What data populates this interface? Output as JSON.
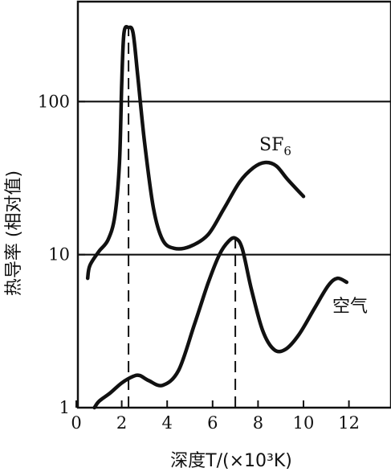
{
  "chart_data": {
    "type": "line",
    "xlabel": "深度T/(×10³K)",
    "ylabel": "热导率 (相对值)",
    "x_ticks": [
      "0",
      "2",
      "4",
      "6",
      "8",
      "10",
      "12"
    ],
    "y_ticks": [
      "1",
      "10",
      "100"
    ],
    "y_tick_values": [
      1,
      10,
      100
    ],
    "xlim": [
      0,
      13
    ],
    "ylim": [
      1,
      450
    ],
    "yscale": "log",
    "gridlines_y": [
      10,
      100
    ],
    "series": [
      {
        "name": "SF6",
        "color": "#111111",
        "points": [
          [
            0.5,
            7.0
          ],
          [
            0.6,
            8.5
          ],
          [
            1.0,
            10.5
          ],
          [
            1.4,
            12.5
          ],
          [
            1.7,
            18
          ],
          [
            1.9,
            40
          ],
          [
            2.0,
            130
          ],
          [
            2.1,
            280
          ],
          [
            2.3,
            305
          ],
          [
            2.5,
            280
          ],
          [
            2.7,
            150
          ],
          [
            3.0,
            55
          ],
          [
            3.4,
            20
          ],
          [
            3.8,
            12.5
          ],
          [
            4.3,
            11.0
          ],
          [
            5.0,
            11.3
          ],
          [
            5.8,
            13.5
          ],
          [
            6.5,
            20
          ],
          [
            7.2,
            30
          ],
          [
            7.8,
            37
          ],
          [
            8.3,
            40
          ],
          [
            8.8,
            38
          ],
          [
            9.3,
            31
          ],
          [
            10.0,
            24
          ]
        ]
      },
      {
        "name": "空气",
        "color": "#111111",
        "points": [
          [
            0.8,
            1.0
          ],
          [
            1.0,
            1.1
          ],
          [
            1.5,
            1.25
          ],
          [
            2.0,
            1.45
          ],
          [
            2.5,
            1.6
          ],
          [
            2.8,
            1.62
          ],
          [
            3.2,
            1.5
          ],
          [
            3.8,
            1.4
          ],
          [
            4.5,
            1.75
          ],
          [
            5.2,
            3.5
          ],
          [
            5.8,
            6.5
          ],
          [
            6.3,
            10
          ],
          [
            6.7,
            12.2
          ],
          [
            7.0,
            12.8
          ],
          [
            7.3,
            11
          ],
          [
            7.7,
            6
          ],
          [
            8.2,
            3.2
          ],
          [
            8.7,
            2.4
          ],
          [
            9.2,
            2.4
          ],
          [
            9.8,
            3.0
          ],
          [
            10.5,
            4.5
          ],
          [
            11.1,
            6.3
          ],
          [
            11.5,
            7.0
          ],
          [
            11.9,
            6.6
          ]
        ]
      }
    ],
    "annotations": [
      {
        "type": "vertical-dashed",
        "x": 2.3,
        "from_y": 1,
        "to_y": 305
      },
      {
        "type": "vertical-dashed",
        "x": 7.0,
        "from_y": 1,
        "to_y": 12.8
      }
    ],
    "series_labels": {
      "sf6_main": "SF",
      "sf6_sub": "6",
      "air": "空气"
    }
  }
}
